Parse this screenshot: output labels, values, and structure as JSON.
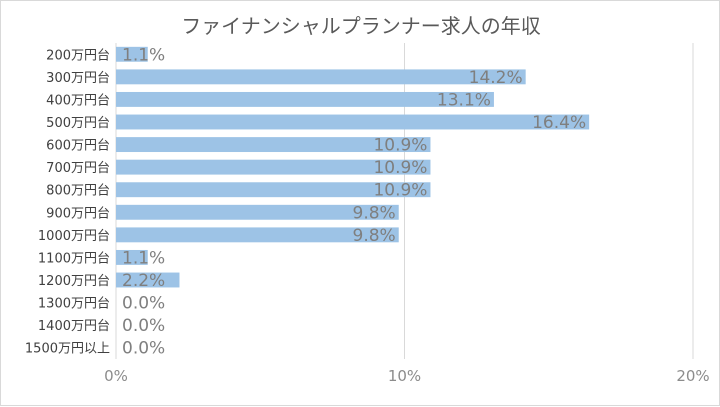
{
  "chart_data": {
    "type": "bar",
    "orientation": "horizontal",
    "title": "ファイナンシャルプランナー求人の年収",
    "categories": [
      "200万円台",
      "300万円台",
      "400万円台",
      "500万円台",
      "600万円台",
      "700万円台",
      "800万円台",
      "900万円台",
      "1000万円台",
      "1100万円台",
      "1200万円台",
      "1300万円台",
      "1400万円台",
      "1500万円以上"
    ],
    "values": [
      1.1,
      14.2,
      13.1,
      16.4,
      10.9,
      10.9,
      10.9,
      9.8,
      9.8,
      1.1,
      2.2,
      0.0,
      0.0,
      0.0
    ],
    "data_labels": [
      "1.1%",
      "14.2%",
      "13.1%",
      "16.4%",
      "10.9%",
      "10.9%",
      "10.9%",
      "9.8%",
      "9.8%",
      "1.1%",
      "2.2%",
      "0.0%",
      "0.0%",
      "0.0%"
    ],
    "x_ticks": [
      0,
      10,
      20
    ],
    "x_tick_labels": [
      "0%",
      "10%",
      "20%"
    ],
    "xlim": [
      0,
      20
    ],
    "bar_color": "#9dc3e6",
    "grid": true,
    "legend": "none"
  }
}
